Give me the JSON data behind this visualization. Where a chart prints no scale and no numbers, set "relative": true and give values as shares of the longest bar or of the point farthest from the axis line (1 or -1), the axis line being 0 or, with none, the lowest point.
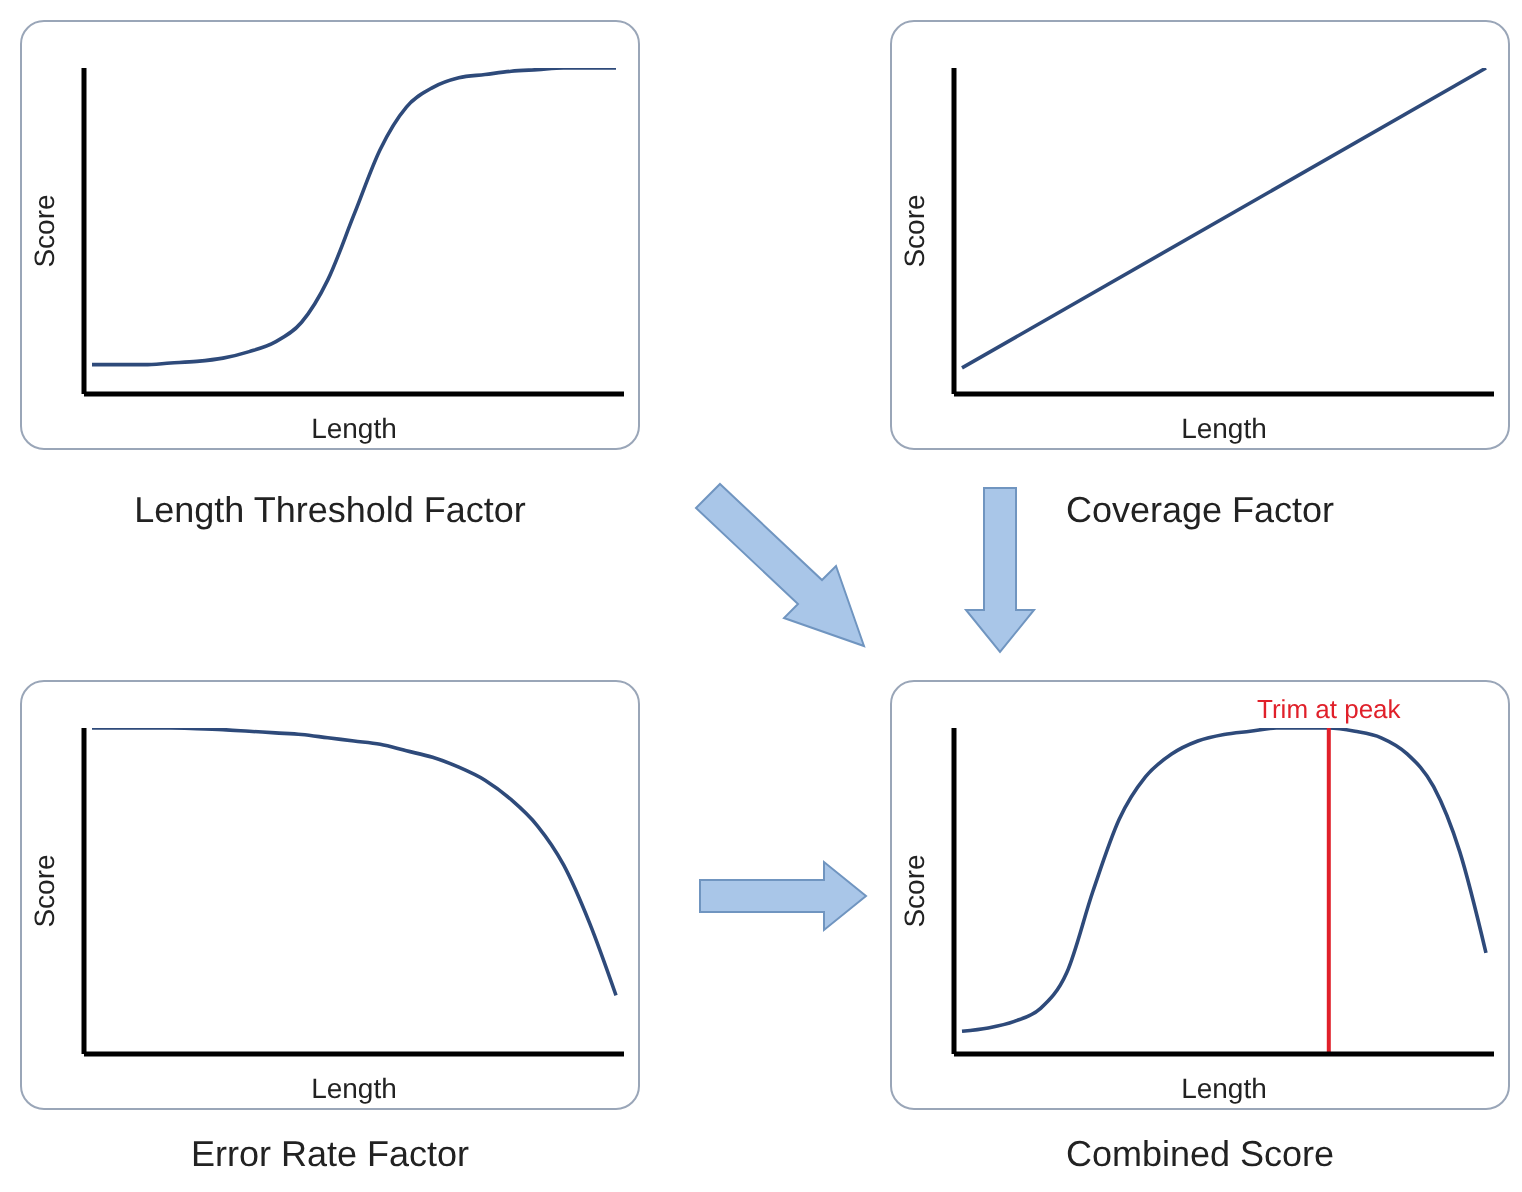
{
  "chart_data": [
    {
      "type": "line",
      "title": "Length Threshold Factor",
      "xlabel": "Length",
      "ylabel": "Score",
      "relative": true,
      "categories": [
        null,
        null,
        null,
        null,
        null,
        null,
        null,
        null,
        null,
        null,
        null,
        null,
        null,
        null,
        null,
        null,
        null,
        null,
        null,
        null,
        null
      ],
      "series": [
        {
          "color": "#2e4a7a",
          "values": [
            0.09,
            0.09,
            0.09,
            0.095,
            0.1,
            0.11,
            0.13,
            0.16,
            0.22,
            0.35,
            0.55,
            0.75,
            0.88,
            0.94,
            0.97,
            0.98,
            0.99,
            0.995,
            1,
            1,
            1
          ]
        }
      ],
      "marker": "none",
      "grid": false,
      "legend": false
    },
    {
      "type": "line",
      "title": "Coverage Factor",
      "xlabel": "Length",
      "ylabel": "Score",
      "relative": true,
      "categories": [
        null,
        null
      ],
      "series": [
        {
          "color": "#2e4a7a",
          "values": [
            0.08,
            1
          ]
        }
      ],
      "marker": "none",
      "grid": false,
      "legend": false
    },
    {
      "type": "line",
      "title": "Error Rate Factor",
      "xlabel": "Length",
      "ylabel": "Score",
      "relative": true,
      "categories": [
        null,
        null,
        null,
        null,
        null,
        null,
        null,
        null,
        null,
        null,
        null,
        null,
        null,
        null,
        null,
        null,
        null,
        null,
        null,
        null,
        null
      ],
      "series": [
        {
          "color": "#2e4a7a",
          "values": [
            1,
            1,
            1,
            1,
            0.998,
            0.995,
            0.99,
            0.985,
            0.98,
            0.97,
            0.96,
            0.95,
            0.93,
            0.91,
            0.88,
            0.84,
            0.78,
            0.7,
            0.58,
            0.4,
            0.18
          ]
        }
      ],
      "marker": "none",
      "grid": false,
      "legend": false
    },
    {
      "type": "line",
      "title": "Combined Score",
      "xlabel": "Length",
      "ylabel": "Score",
      "relative": true,
      "categories": [
        null,
        null,
        null,
        null,
        null,
        null,
        null,
        null,
        null,
        null,
        null,
        null,
        null,
        null,
        null,
        null,
        null,
        null,
        null,
        null,
        null
      ],
      "series": [
        {
          "color": "#2e4a7a",
          "values": [
            0.07,
            0.08,
            0.1,
            0.14,
            0.25,
            0.5,
            0.72,
            0.85,
            0.92,
            0.96,
            0.98,
            0.99,
            1,
            1,
            1,
            0.99,
            0.97,
            0.92,
            0.82,
            0.62,
            0.31
          ]
        }
      ],
      "marker": "none",
      "grid": false,
      "legend": false,
      "annotations": [
        "Trim at peak"
      ]
    }
  ]
}
